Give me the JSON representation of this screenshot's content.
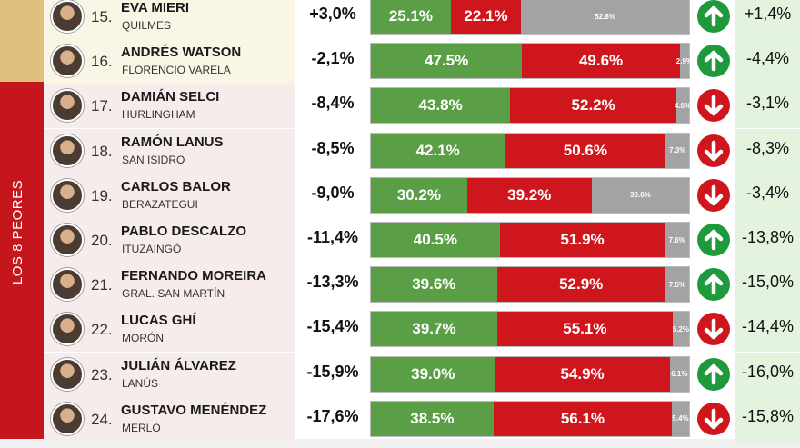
{
  "section_label": "LOS 8 PEORES",
  "colors": {
    "positive": "#5a9f45",
    "negative": "#d0161d",
    "undecided": "#a3a3a3",
    "arrow_up": "#1e9a3c",
    "arrow_down": "#d0161d",
    "section_top": "#e0c07e",
    "section_worst": "#c4161c"
  },
  "chart_data": {
    "type": "table",
    "columns": [
      "rank",
      "name",
      "municipality",
      "change",
      "positive",
      "negative",
      "undecided",
      "trend_direction",
      "trend"
    ],
    "rows": [
      {
        "rank": "15.",
        "name": "EVA MIERI",
        "municipality": "QUILMES",
        "change": "+3,0%",
        "positive": 25.1,
        "negative": 22.1,
        "undecided": 52.8,
        "positive_label": "25.1%",
        "negative_label": "22.1%",
        "undecided_label": "52.8%",
        "trend_direction": "up",
        "trend": "+1,4%",
        "group": "top"
      },
      {
        "rank": "16.",
        "name": "ANDRÉS WATSON",
        "municipality": "FLORENCIO VARELA",
        "change": "-2,1%",
        "positive": 47.5,
        "negative": 49.6,
        "undecided": 2.9,
        "positive_label": "47.5%",
        "negative_label": "49.6%",
        "undecided_label": "2.9%",
        "trend_direction": "up",
        "trend": "-4,4%",
        "group": "top"
      },
      {
        "rank": "17.",
        "name": "DAMIÁN SELCI",
        "municipality": "HURLINGHAM",
        "change": "-8,4%",
        "positive": 43.8,
        "negative": 52.2,
        "undecided": 4.0,
        "positive_label": "43.8%",
        "negative_label": "52.2%",
        "undecided_label": "4.0%",
        "trend_direction": "down",
        "trend": "-3,1%",
        "group": "bottom"
      },
      {
        "rank": "18.",
        "name": "RAMÓN LANUS",
        "municipality": "SAN ISIDRO",
        "change": "-8,5%",
        "positive": 42.1,
        "negative": 50.6,
        "undecided": 7.3,
        "positive_label": "42.1%",
        "negative_label": "50.6%",
        "undecided_label": "7.3%",
        "trend_direction": "down",
        "trend": "-8,3%",
        "group": "bottom"
      },
      {
        "rank": "19.",
        "name": "CARLOS BALOR",
        "municipality": "BERAZATEGUI",
        "change": "-9,0%",
        "positive": 30.2,
        "negative": 39.2,
        "undecided": 30.6,
        "positive_label": "30.2%",
        "negative_label": "39.2%",
        "undecided_label": "30.6%",
        "trend_direction": "down",
        "trend": "-3,4%",
        "group": "bottom"
      },
      {
        "rank": "20.",
        "name": "PABLO DESCALZO",
        "municipality": "ITUZAINGÓ",
        "change": "-11,4%",
        "positive": 40.5,
        "negative": 51.9,
        "undecided": 7.6,
        "positive_label": "40.5%",
        "negative_label": "51.9%",
        "undecided_label": "7.6%",
        "trend_direction": "up",
        "trend": "-13,8%",
        "group": "bottom"
      },
      {
        "rank": "21.",
        "name": "FERNANDO MOREIRA",
        "municipality": "GRAL. SAN MARTÍN",
        "change": "-13,3%",
        "positive": 39.6,
        "negative": 52.9,
        "undecided": 7.5,
        "positive_label": "39.6%",
        "negative_label": "52.9%",
        "undecided_label": "7.5%",
        "trend_direction": "up",
        "trend": "-15,0%",
        "group": "bottom"
      },
      {
        "rank": "22.",
        "name": "LUCAS GHÍ",
        "municipality": "MORÓN",
        "change": "-15,4%",
        "positive": 39.7,
        "negative": 55.1,
        "undecided": 5.2,
        "positive_label": "39.7%",
        "negative_label": "55.1%",
        "undecided_label": "5.2%",
        "trend_direction": "down",
        "trend": "-14,4%",
        "group": "bottom"
      },
      {
        "rank": "23.",
        "name": "JULIÁN ÁLVAREZ",
        "municipality": "LANÚS",
        "change": "-15,9%",
        "positive": 39.0,
        "negative": 54.9,
        "undecided": 6.1,
        "positive_label": "39.0%",
        "negative_label": "54.9%",
        "undecided_label": "6.1%",
        "trend_direction": "up",
        "trend": "-16,0%",
        "group": "bottom"
      },
      {
        "rank": "24.",
        "name": "GUSTAVO MENÉNDEZ",
        "municipality": "MERLO",
        "change": "-17,6%",
        "positive": 38.5,
        "negative": 56.1,
        "undecided": 5.4,
        "positive_label": "38.5%",
        "negative_label": "56.1%",
        "undecided_label": "5.4%",
        "trend_direction": "down",
        "trend": "-15,8%",
        "group": "bottom"
      }
    ]
  }
}
